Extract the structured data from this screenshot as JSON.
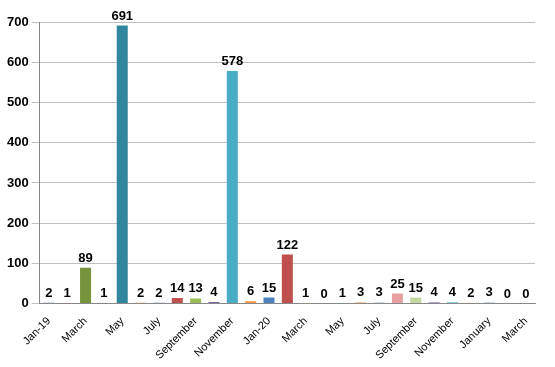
{
  "chart_data": {
    "type": "bar",
    "categories": [
      "Jan-19",
      null,
      "March",
      null,
      "May",
      null,
      "July",
      null,
      "September",
      null,
      "November",
      null,
      "Jan-20",
      null,
      "March",
      null,
      "May",
      null,
      "July",
      null,
      "September",
      null,
      "November",
      null,
      "January",
      null,
      "March"
    ],
    "values": [
      2,
      1,
      89,
      1,
      691,
      2,
      2,
      14,
      13,
      4,
      578,
      6,
      15,
      122,
      1,
      0,
      1,
      3,
      3,
      25,
      15,
      4,
      4,
      2,
      3,
      0,
      0
    ],
    "colors": [
      "#4f81bd",
      "#c0504d",
      "#77933c",
      "#8064a2",
      "#31859c",
      "#f79646",
      "#4f81bd",
      "#c0504d",
      "#9bbb59",
      "#8064a2",
      "#4bacc6",
      "#f79646",
      "#4f81bd",
      "#c0504d",
      "#9bbb59",
      "#8064a2",
      "#4bacc6",
      "#f79646",
      "#95b3d7",
      "#e6a0a0",
      "#c3d69b",
      "#b3a2c7",
      "#93cddd",
      "#fac090",
      "#95b3d7",
      "#e6a0a0",
      "#c3d69b"
    ],
    "ylim": [
      0,
      700
    ],
    "yticks": [
      0,
      100,
      200,
      300,
      400,
      500,
      600,
      700
    ],
    "grid": true,
    "data_labels": true
  }
}
